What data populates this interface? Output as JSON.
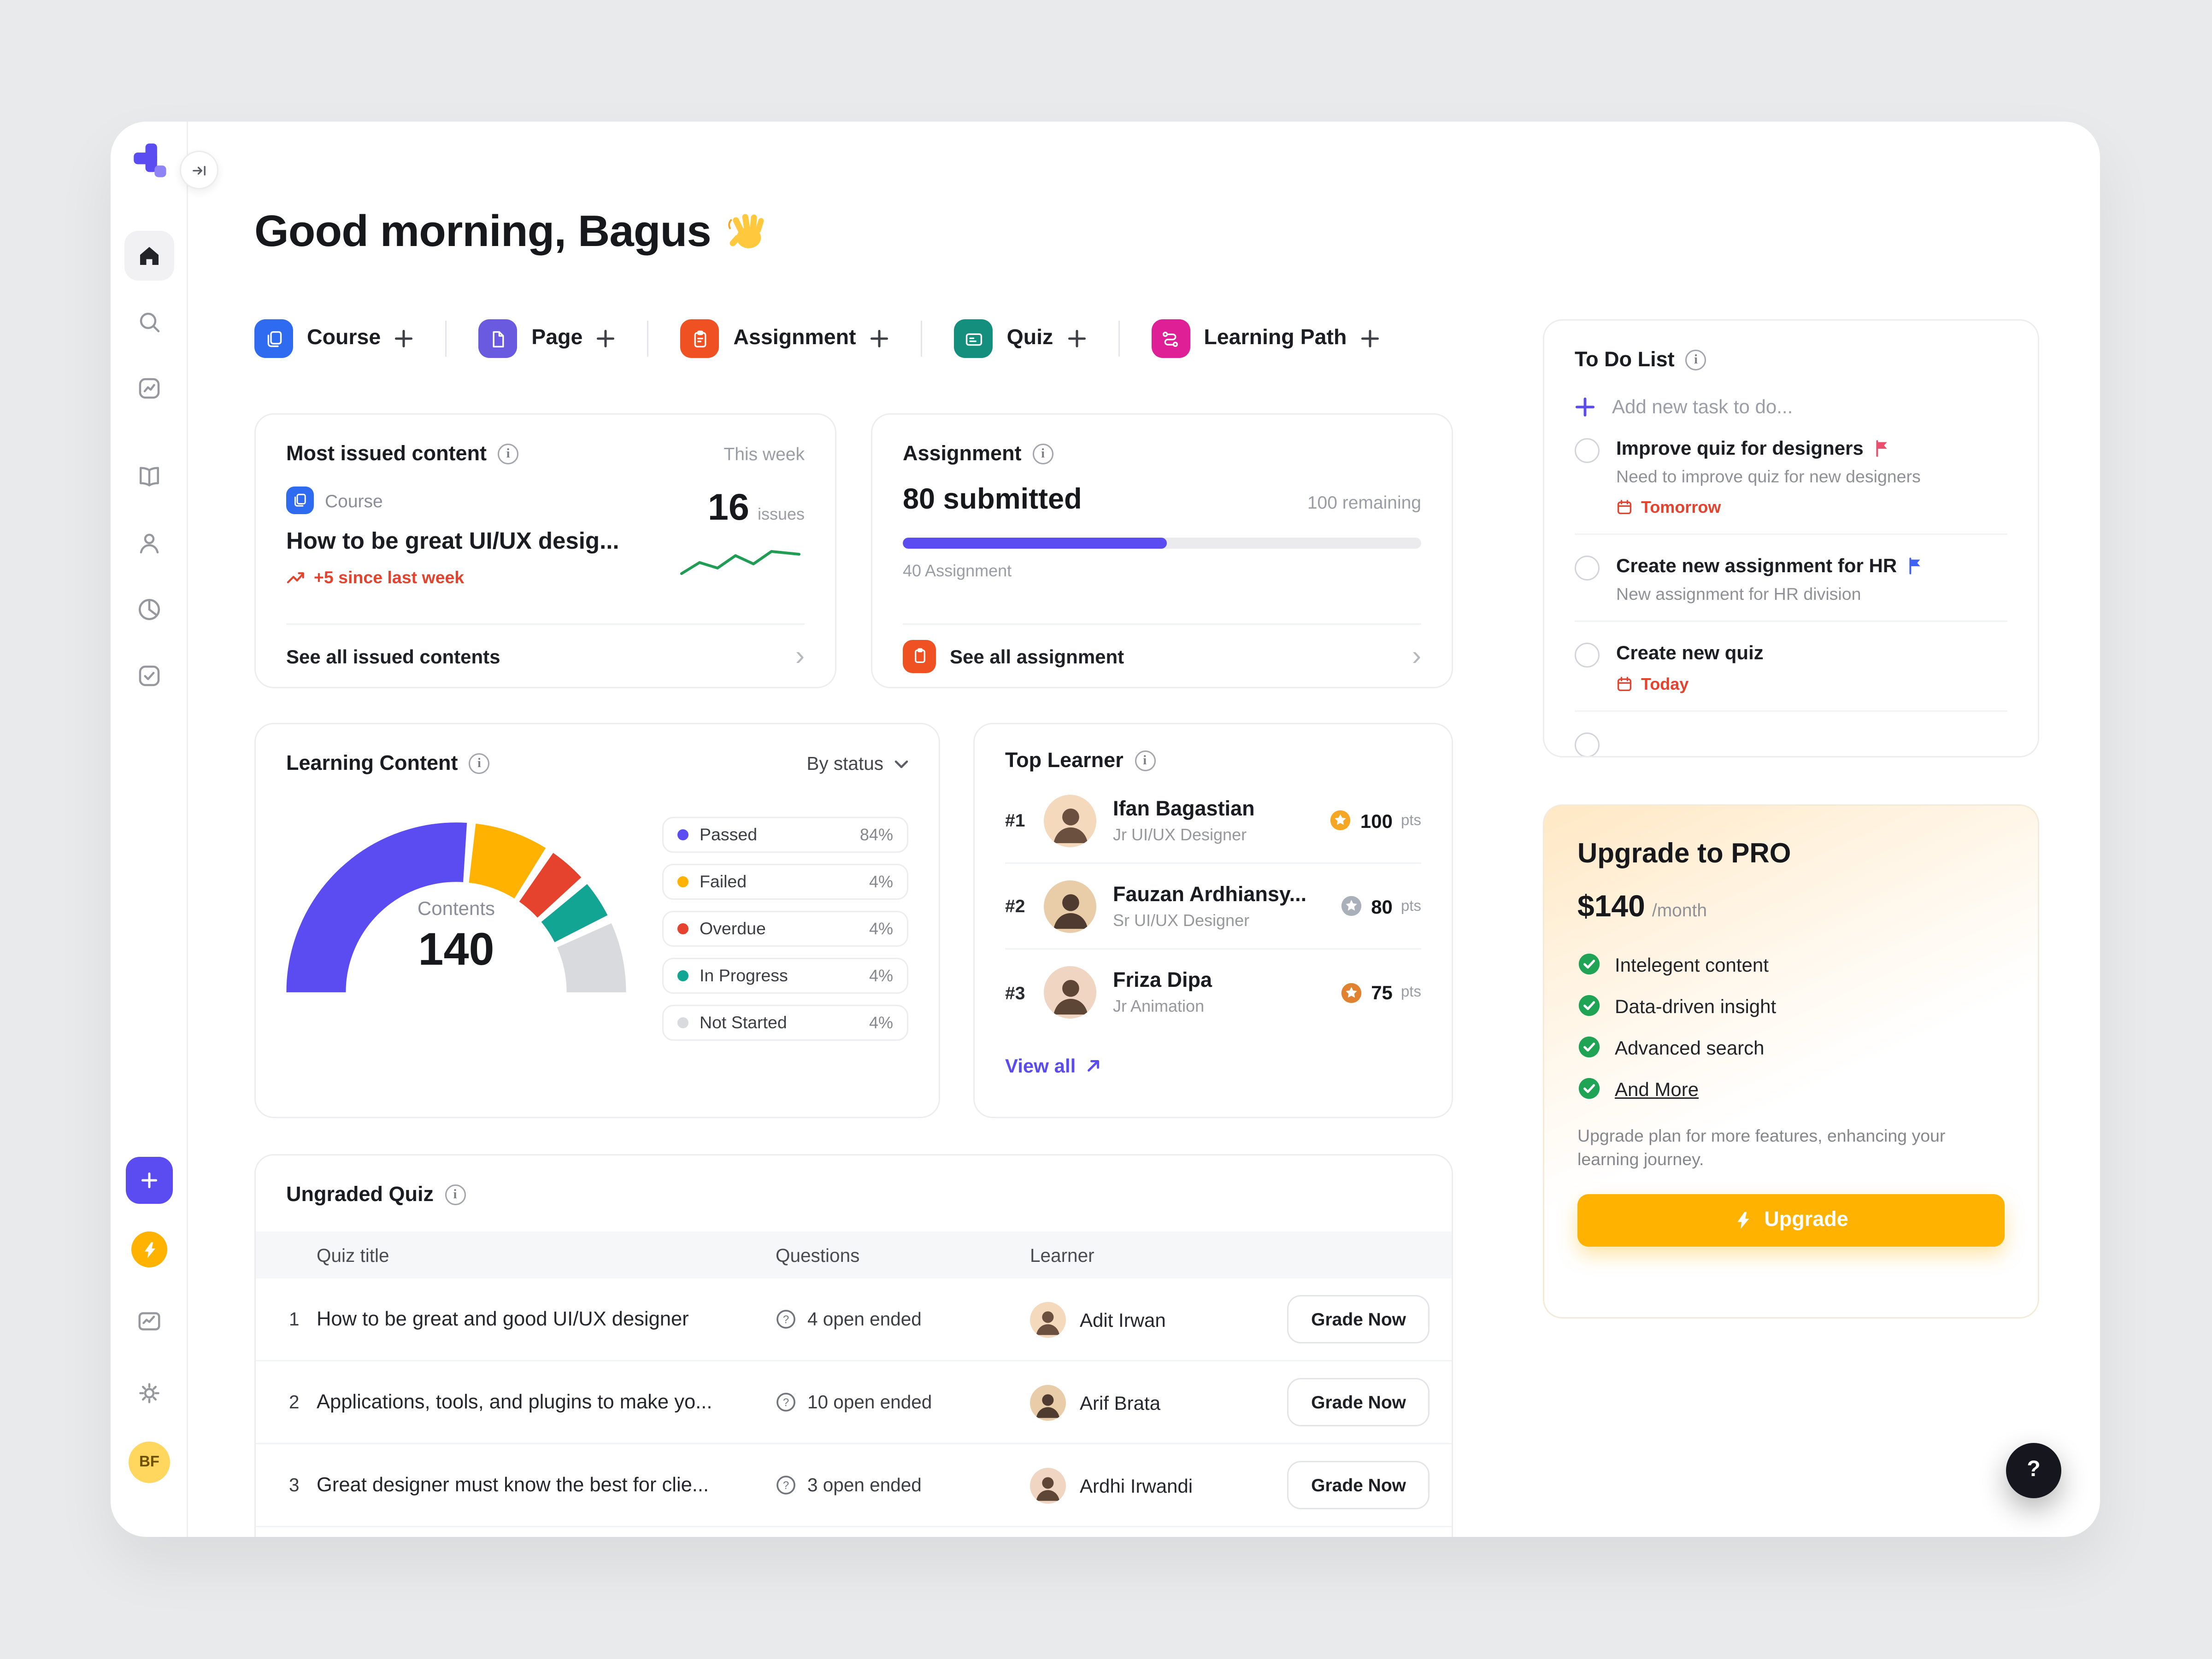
{
  "colors": {
    "accent": "#5a4cf0",
    "blue": "#2e6bf0",
    "purple": "#6a5ae0",
    "orange": "#ef5123",
    "teal_icon": "#148f7d",
    "magenta": "#de1f96",
    "warning": "#ffb200",
    "danger": "#e5432e",
    "success": "#1fa355"
  },
  "sidebar": {
    "avatar_initials": "BF"
  },
  "header": {
    "greeting": "Good morning, Bagus"
  },
  "quick_actions": [
    {
      "label": "Course"
    },
    {
      "label": "Page"
    },
    {
      "label": "Assignment"
    },
    {
      "label": "Quiz"
    },
    {
      "label": "Learning Path"
    }
  ],
  "most_issued": {
    "title": "Most issued content",
    "period": "This week",
    "type_label": "Course",
    "content_title": "How to be great UI/UX desig...",
    "trend": "+5 since last week",
    "count": "16",
    "count_unit": "issues",
    "see_all": "See all issued contents"
  },
  "assignment": {
    "title": "Assignment",
    "submitted": "80 submitted",
    "remaining": "100 remaining",
    "progress_percent": 51,
    "progress_label": "40 Assignment",
    "see_all": "See all assignment"
  },
  "learning_content": {
    "title": "Learning Content",
    "filter_label": "By status",
    "center_label": "Contents",
    "center_value": "140",
    "legend": [
      {
        "label": "Passed",
        "value": "84%",
        "color": "#5a4cf0"
      },
      {
        "label": "Failed",
        "value": "4%",
        "color": "#ffb200"
      },
      {
        "label": "Overdue",
        "value": "4%",
        "color": "#e5432e"
      },
      {
        "label": "In Progress",
        "value": "4%",
        "color": "#12a594"
      },
      {
        "label": "Not Started",
        "value": "4%",
        "color": "#d9dadd"
      }
    ]
  },
  "top_learner": {
    "title": "Top Learner",
    "view_all": "View all",
    "rows": [
      {
        "rank": "#1",
        "name": "Ifan Bagastian",
        "role": "Jr UI/UX Designer",
        "points": "100",
        "unit": "pts",
        "medal_color": "#f5a623"
      },
      {
        "rank": "#2",
        "name": "Fauzan Ardhiansy...",
        "role": "Sr UI/UX Designer",
        "points": "80",
        "unit": "pts",
        "medal_color": "#a9b0ba"
      },
      {
        "rank": "#3",
        "name": "Friza Dipa",
        "role": "Jr Animation",
        "points": "75",
        "unit": "pts",
        "medal_color": "#e0822f"
      }
    ]
  },
  "ungraded_quiz": {
    "title": "Ungraded Quiz",
    "columns": [
      "Quiz title",
      "Questions",
      "Learner"
    ],
    "rows": [
      {
        "num": "1",
        "title": "How to be great and good UI/UX designer",
        "questions": "4 open ended",
        "learner": "Adit Irwan",
        "action": "Grade Now"
      },
      {
        "num": "2",
        "title": "Applications, tools, and plugins to make yo...",
        "questions": "10 open ended",
        "learner": "Arif Brata",
        "action": "Grade Now"
      },
      {
        "num": "3",
        "title": "Great designer must know the best for clie...",
        "questions": "3 open ended",
        "learner": "Ardhi Irwandi",
        "action": "Grade Now"
      }
    ]
  },
  "todo": {
    "title": "To Do List",
    "add_placeholder": "Add new task to do...",
    "tasks": [
      {
        "title": "Improve quiz for designers",
        "flag_color": "#e8506e",
        "subtitle": "Need to improve quiz for new designers",
        "due": "Tomorrow"
      },
      {
        "title": "Create new assignment for HR",
        "flag_color": "#3e63f4",
        "subtitle": "New assignment for HR division"
      },
      {
        "title": "Create new quiz",
        "due": "Today"
      }
    ]
  },
  "upgrade": {
    "title": "Upgrade to PRO",
    "price": "$140",
    "period": "/month",
    "features": [
      {
        "label": "Intelegent content"
      },
      {
        "label": "Data-driven insight"
      },
      {
        "label": "Advanced search"
      },
      {
        "label": "And More"
      }
    ],
    "description": "Upgrade plan for more features, enhancing your learning journey.",
    "button_label": "Upgrade"
  },
  "help": {
    "label": "?"
  }
}
